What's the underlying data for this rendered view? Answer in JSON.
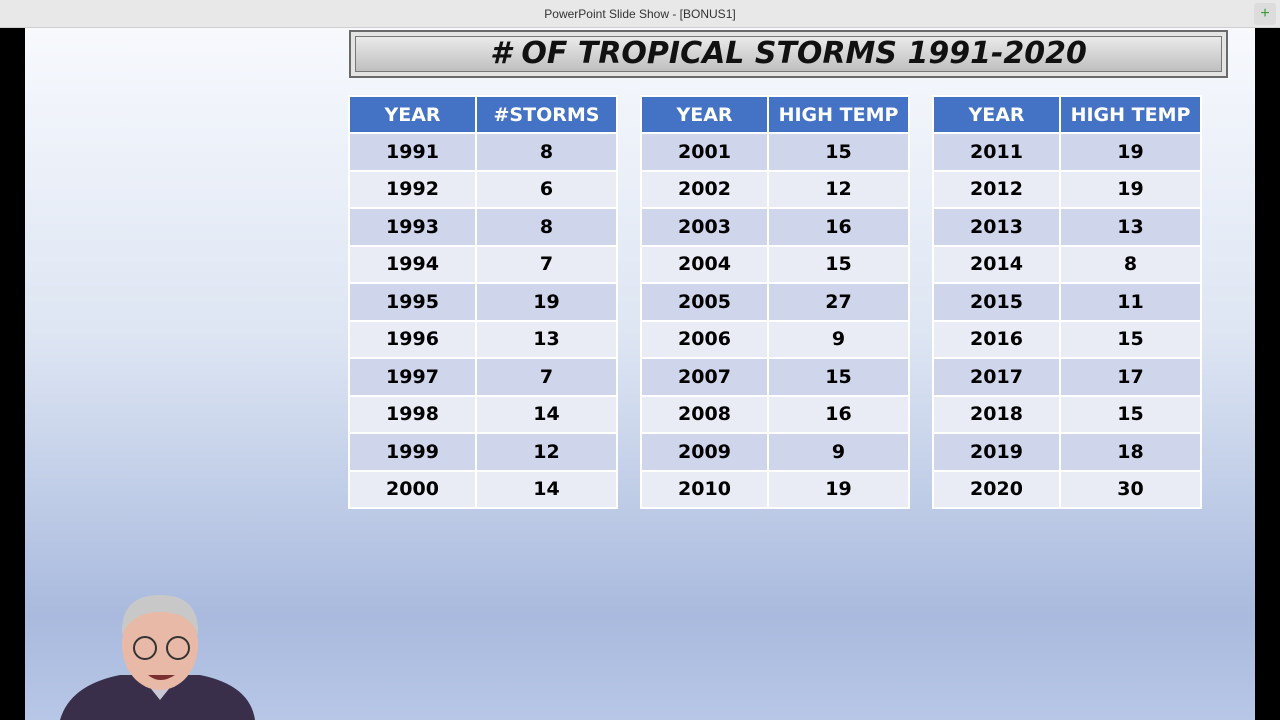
{
  "window": {
    "title": "PowerPoint Slide Show - [BONUS1]"
  },
  "slide": {
    "title": "# OF TROPICAL STORMS 1991-2020",
    "tables": [
      {
        "header": [
          "YEAR",
          "#STORMS"
        ],
        "rows": [
          [
            1991,
            8
          ],
          [
            1992,
            6
          ],
          [
            1993,
            8
          ],
          [
            1994,
            7
          ],
          [
            1995,
            19
          ],
          [
            1996,
            13
          ],
          [
            1997,
            7
          ],
          [
            1998,
            14
          ],
          [
            1999,
            12
          ],
          [
            2000,
            14
          ]
        ]
      },
      {
        "header": [
          "YEAR",
          "HIGH TEMP"
        ],
        "rows": [
          [
            2001,
            15
          ],
          [
            2002,
            12
          ],
          [
            2003,
            16
          ],
          [
            2004,
            15
          ],
          [
            2005,
            27
          ],
          [
            2006,
            9
          ],
          [
            2007,
            15
          ],
          [
            2008,
            16
          ],
          [
            2009,
            9
          ],
          [
            2010,
            19
          ]
        ]
      },
      {
        "header": [
          "YEAR",
          "HIGH TEMP"
        ],
        "rows": [
          [
            2011,
            19
          ],
          [
            2012,
            19
          ],
          [
            2013,
            13
          ],
          [
            2014,
            8
          ],
          [
            2015,
            11
          ],
          [
            2016,
            15
          ],
          [
            2017,
            17
          ],
          [
            2018,
            15
          ],
          [
            2019,
            18
          ],
          [
            2020,
            30
          ]
        ]
      }
    ]
  }
}
